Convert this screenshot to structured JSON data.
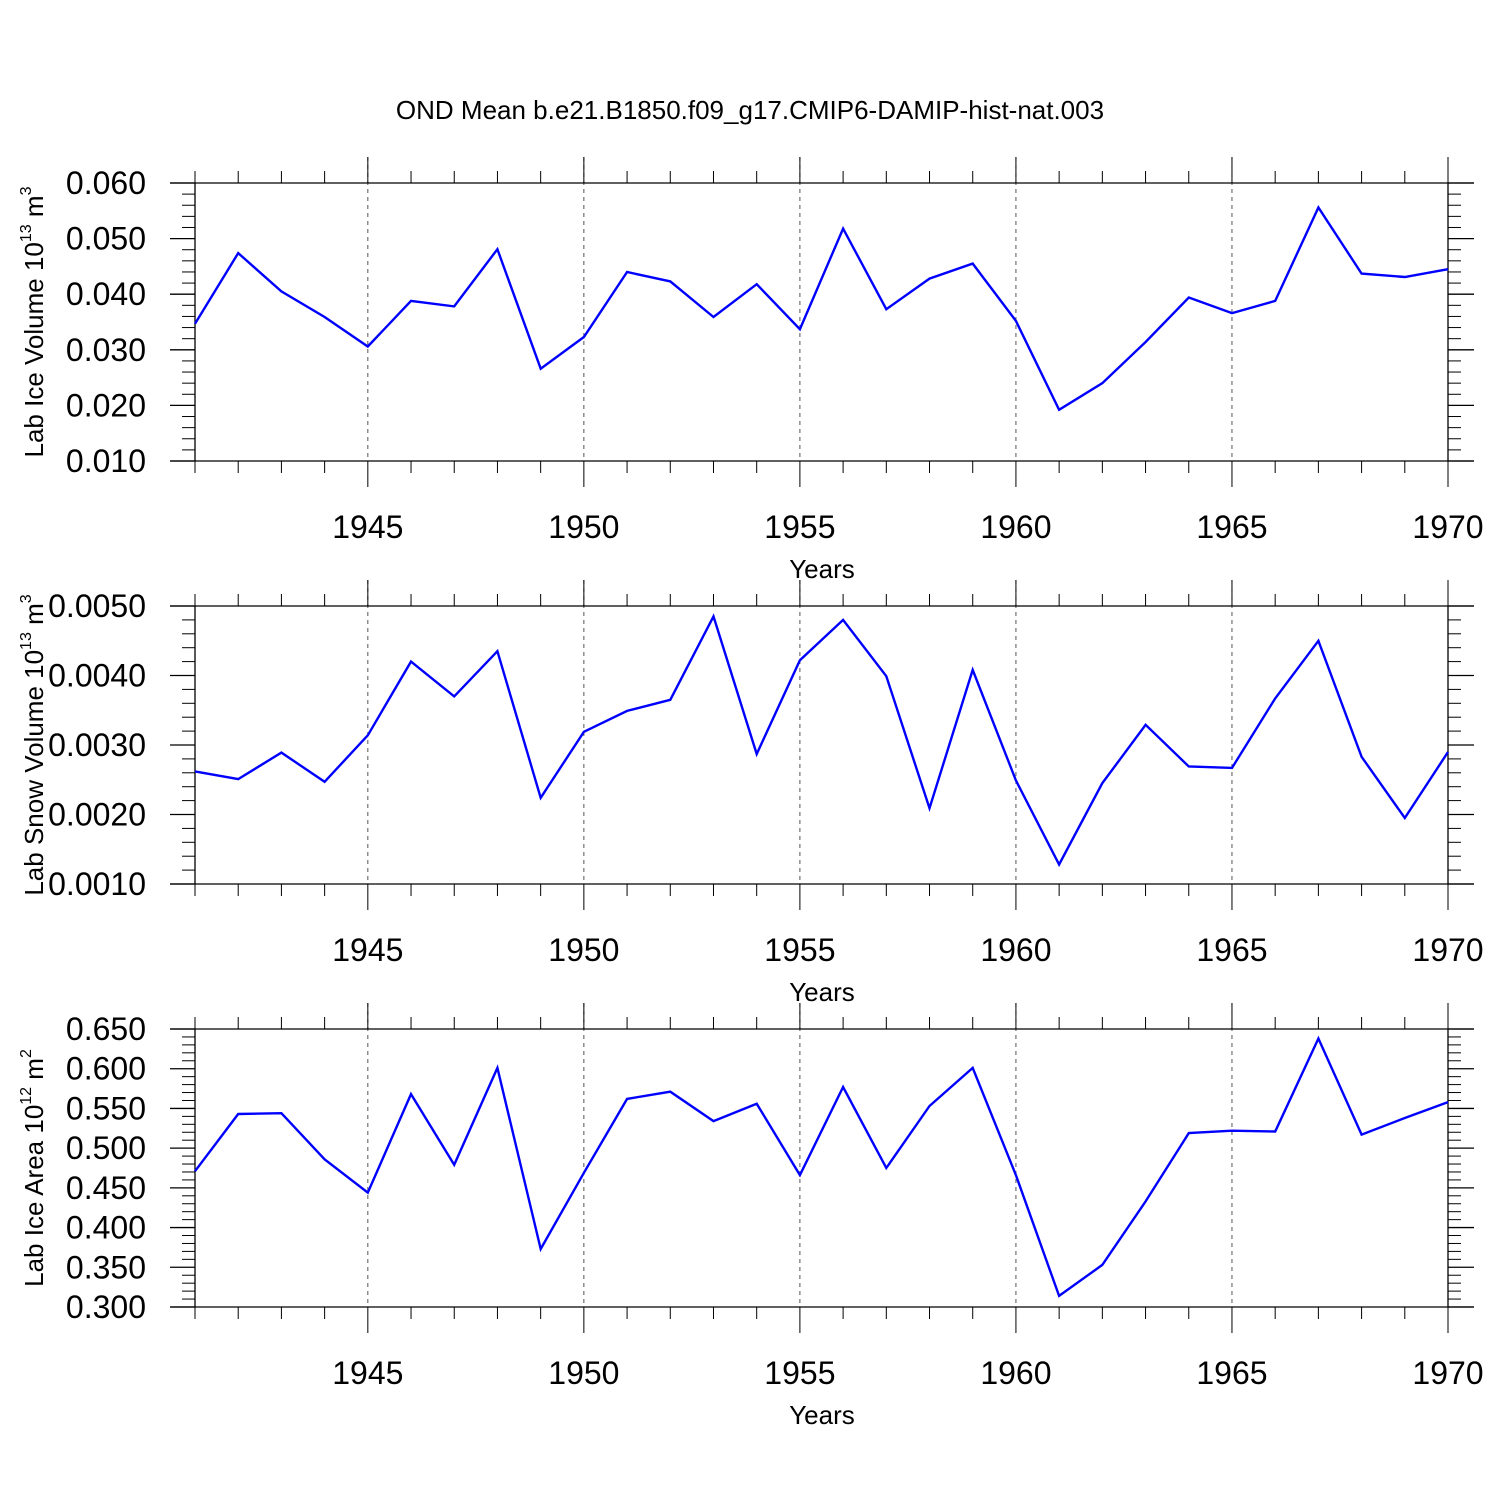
{
  "title": "OND Mean b.e21.B1850.f09_g17.CMIP6-DAMIP-hist-nat.003",
  "line_color": "#0000ff",
  "chart_data": [
    {
      "type": "line",
      "ylabel": "Lab Ice Volume 10",
      "ylabel_exp": "13",
      "ylabel_unit": "m",
      "ylabel_unit_exp": "3",
      "xlabel": "Years",
      "xlim": [
        1941,
        1970
      ],
      "ylim": [
        0.01,
        0.06
      ],
      "xticks": [
        1945,
        1950,
        1955,
        1960,
        1965,
        1970
      ],
      "yticks": [
        "0.010",
        "0.020",
        "0.030",
        "0.040",
        "0.050",
        "0.060"
      ],
      "ytick_values": [
        0.01,
        0.02,
        0.03,
        0.04,
        0.05,
        0.06
      ],
      "x": [
        1941,
        1942,
        1943,
        1944,
        1945,
        1946,
        1947,
        1948,
        1949,
        1950,
        1951,
        1952,
        1953,
        1954,
        1955,
        1956,
        1957,
        1958,
        1959,
        1960,
        1961,
        1962,
        1963,
        1964,
        1965,
        1966,
        1967,
        1968,
        1969,
        1970
      ],
      "y": [
        0.0347,
        0.0474,
        0.0405,
        0.0359,
        0.0306,
        0.0388,
        0.0378,
        0.0481,
        0.0266,
        0.0323,
        0.044,
        0.0423,
        0.0359,
        0.0418,
        0.0337,
        0.0518,
        0.0373,
        0.0428,
        0.0455,
        0.0352,
        0.0192,
        0.024,
        0.0314,
        0.0394,
        0.0366,
        0.0388,
        0.0556,
        0.0437,
        0.0431,
        0.0445
      ]
    },
    {
      "type": "line",
      "ylabel": "Lab Snow Volume 10",
      "ylabel_exp": "13",
      "ylabel_unit": "m",
      "ylabel_unit_exp": "3",
      "xlabel": "Years",
      "xlim": [
        1941,
        1970
      ],
      "ylim": [
        0.001,
        0.005
      ],
      "xticks": [
        1945,
        1950,
        1955,
        1960,
        1965,
        1970
      ],
      "yticks": [
        "0.0010",
        "0.0020",
        "0.0030",
        "0.0040",
        "0.0050"
      ],
      "ytick_values": [
        0.001,
        0.002,
        0.003,
        0.004,
        0.005
      ],
      "x": [
        1941,
        1942,
        1943,
        1944,
        1945,
        1946,
        1947,
        1948,
        1949,
        1950,
        1951,
        1952,
        1953,
        1954,
        1955,
        1956,
        1957,
        1958,
        1959,
        1960,
        1961,
        1962,
        1963,
        1964,
        1965,
        1966,
        1967,
        1968,
        1969,
        1970
      ],
      "y": [
        0.00262,
        0.00251,
        0.00289,
        0.00247,
        0.00314,
        0.0042,
        0.0037,
        0.00435,
        0.00224,
        0.00319,
        0.00349,
        0.00365,
        0.00485,
        0.00287,
        0.00422,
        0.0048,
        0.00399,
        0.00209,
        0.00408,
        0.00249,
        0.00128,
        0.00245,
        0.00329,
        0.00269,
        0.00267,
        0.00367,
        0.0045,
        0.00283,
        0.00195,
        0.0029
      ]
    },
    {
      "type": "line",
      "ylabel": "Lab Ice Area 10",
      "ylabel_exp": "12",
      "ylabel_unit": "m",
      "ylabel_unit_exp": "2",
      "xlabel": "Years",
      "xlim": [
        1941,
        1970
      ],
      "ylim": [
        0.3,
        0.65
      ],
      "xticks": [
        1945,
        1950,
        1955,
        1960,
        1965,
        1970
      ],
      "yticks": [
        "0.300",
        "0.350",
        "0.400",
        "0.450",
        "0.500",
        "0.550",
        "0.600",
        "0.650"
      ],
      "ytick_values": [
        0.3,
        0.35,
        0.4,
        0.45,
        0.5,
        0.55,
        0.6,
        0.65
      ],
      "x": [
        1941,
        1942,
        1943,
        1944,
        1945,
        1946,
        1947,
        1948,
        1949,
        1950,
        1951,
        1952,
        1953,
        1954,
        1955,
        1956,
        1957,
        1958,
        1959,
        1960,
        1961,
        1962,
        1963,
        1964,
        1965,
        1966,
        1967,
        1968,
        1969,
        1970
      ],
      "y": [
        0.471,
        0.543,
        0.544,
        0.486,
        0.444,
        0.568,
        0.479,
        0.601,
        0.373,
        0.469,
        0.562,
        0.571,
        0.534,
        0.556,
        0.466,
        0.577,
        0.475,
        0.553,
        0.601,
        0.466,
        0.314,
        0.353,
        0.433,
        0.519,
        0.522,
        0.521,
        0.638,
        0.517,
        0.538,
        0.558
      ]
    }
  ]
}
